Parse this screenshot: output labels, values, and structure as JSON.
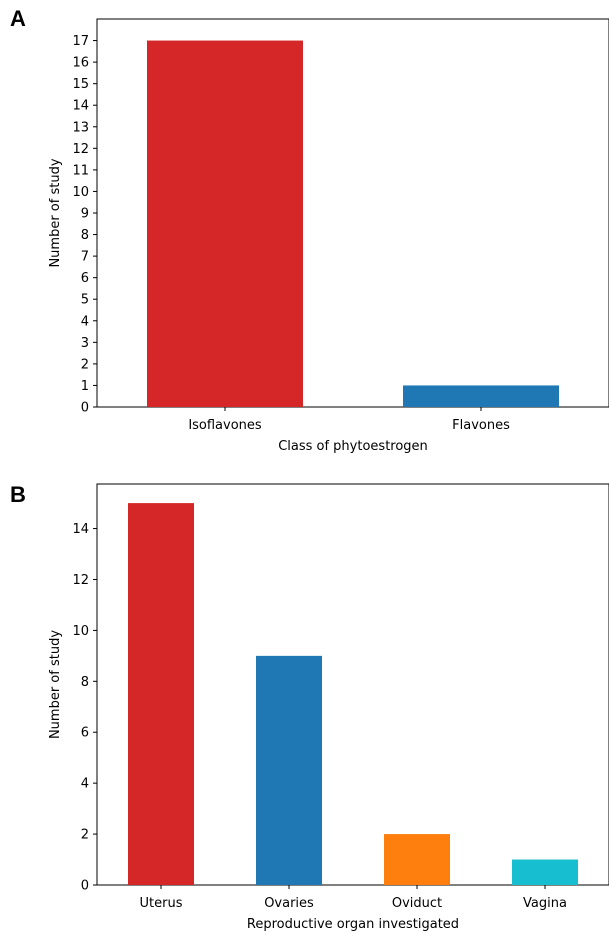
{
  "panels": {
    "a": {
      "letter": "A"
    },
    "b": {
      "letter": "B"
    }
  },
  "chart_data": [
    {
      "type": "bar",
      "categories": [
        "Isoflavones",
        "Flavones"
      ],
      "values": [
        17,
        1
      ],
      "colors": [
        "#d62728",
        "#1f77b4"
      ],
      "title": "",
      "xlabel": "Class of phytoestrogen",
      "ylabel": "Number of study",
      "ylim": [
        0,
        18
      ],
      "yticks": [
        0,
        1,
        2,
        3,
        4,
        5,
        6,
        7,
        8,
        9,
        10,
        11,
        12,
        13,
        14,
        15,
        16,
        17
      ],
      "grid": false,
      "legend": "none"
    },
    {
      "type": "bar",
      "categories": [
        "Uterus",
        "Ovaries",
        "Oviduct",
        "Vagina"
      ],
      "values": [
        15,
        9,
        2,
        1
      ],
      "colors": [
        "#d62728",
        "#1f77b4",
        "#ff7f0e",
        "#17becf"
      ],
      "title": "",
      "xlabel": "Reproductive organ investigated",
      "ylabel": "Number of study",
      "ylim": [
        0,
        15.75
      ],
      "yticks": [
        0,
        2,
        4,
        6,
        8,
        10,
        12,
        14
      ],
      "grid": false,
      "legend": "none"
    }
  ]
}
